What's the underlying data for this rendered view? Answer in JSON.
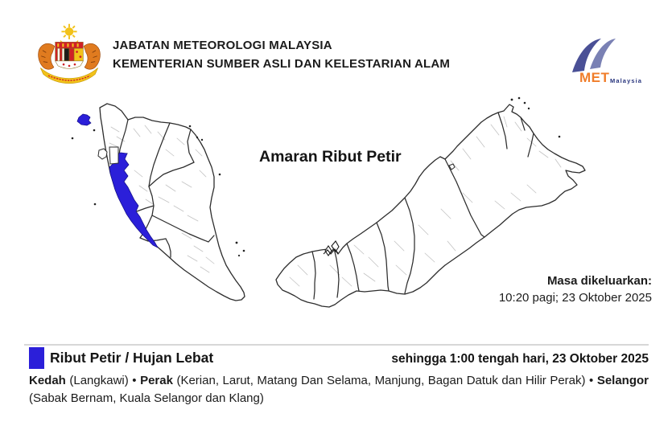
{
  "header": {
    "line1": "JABATAN METEOROLOGI MALAYSIA",
    "line2": "KEMENTERIAN SUMBER ASLI DAN KELESTARIAN ALAM"
  },
  "met_logo": {
    "met": "MET",
    "malaysia": "Malaysia",
    "met_color": "#f07d2a",
    "malaysia_color": "#26337c"
  },
  "map": {
    "title": "Amaran Ribut Petir",
    "issued_label": "Masa dikeluarkan:",
    "issued_value": "10:20 pagi; 23 Oktober 2025"
  },
  "legend": {
    "label": "Ribut Petir / Hujan Lebat",
    "valid_until": "sehingga 1:00 tengah hari, 23 Oktober 2025",
    "swatch_color": "#2b1fd9"
  },
  "areas": {
    "segments": [
      {
        "text": "Kedah",
        "bold": true
      },
      {
        "text": " (Langkawi) ",
        "bold": false
      },
      {
        "text": "• ",
        "bold": false
      },
      {
        "text": "Perak",
        "bold": true
      },
      {
        "text": " (Kerian, Larut, Matang Dan Selama, Manjung, Bagan Datuk dan Hilir Perak) ",
        "bold": false
      },
      {
        "text": "• ",
        "bold": false
      },
      {
        "text": "Selangor",
        "bold": true
      },
      {
        "text": " (Sabak Bernam, Kuala Selangor dan Klang)",
        "bold": false
      }
    ]
  }
}
